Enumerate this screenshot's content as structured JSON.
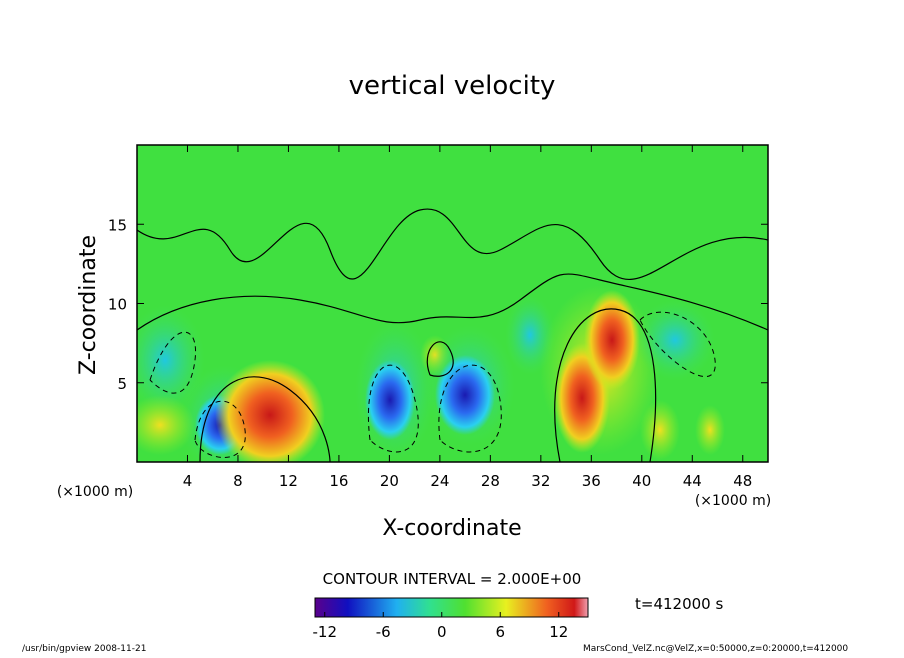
{
  "chart_data": {
    "type": "contour",
    "title": "vertical velocity",
    "xlabel": "X-coordinate",
    "ylabel": "Z-coordinate",
    "x_unit": "(×1000 m)",
    "xlim": [
      0,
      50
    ],
    "xticks": [
      4,
      8,
      12,
      16,
      20,
      24,
      28,
      32,
      36,
      40,
      44,
      48
    ],
    "ylim": [
      0,
      20
    ],
    "yticks": [
      5,
      10,
      15
    ],
    "contour_interval": "CONTOUR INTERVAL = 2.000E+00",
    "colorbar": {
      "lim": [
        -13,
        15
      ],
      "ticks": [
        -12,
        -6,
        0,
        6,
        12
      ]
    },
    "time_label": "t=412000 s",
    "footer_left": "/usr/bin/gpview  2008-11-21",
    "footer_right": "MarsCond_VelZ.nc@VelZ,x=0:50000,z=0:20000,t=412000"
  }
}
